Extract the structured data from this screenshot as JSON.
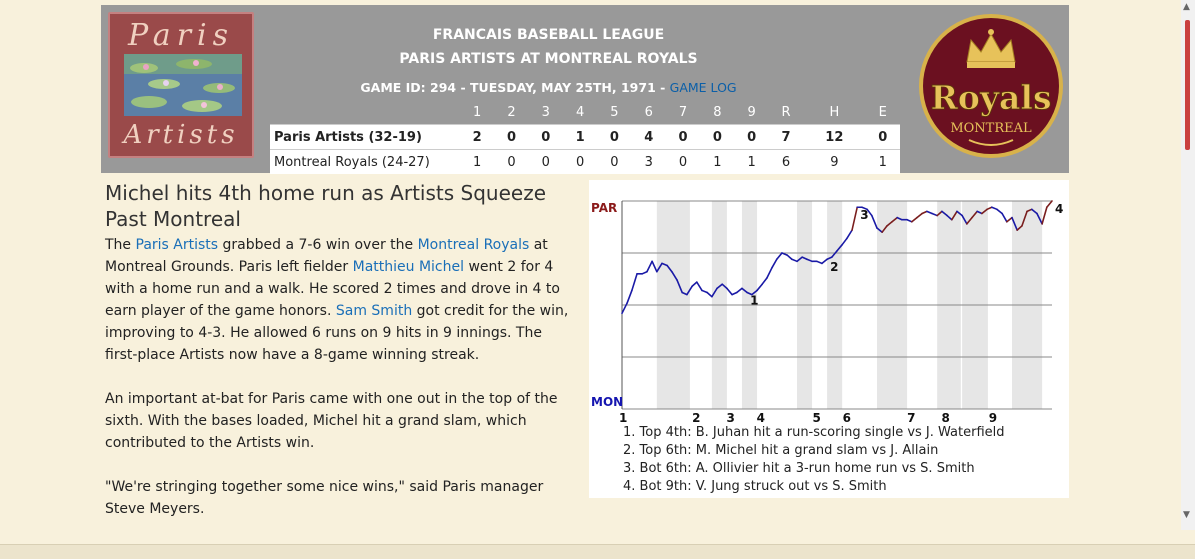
{
  "header": {
    "league": "FRANCAIS BASEBALL LEAGUE",
    "matchup": "PARIS ARTISTS AT MONTREAL ROYALS",
    "game_info": "GAME ID: 294 - TUESDAY, MAY 25TH, 1971 - ",
    "game_log_link": "GAME LOG"
  },
  "logos": {
    "left": {
      "word1": "Paris",
      "word2": "Artists"
    },
    "right": {
      "word1": "Royals",
      "word2": "MONTREAL"
    }
  },
  "linescore": {
    "columns": [
      "1",
      "2",
      "3",
      "4",
      "5",
      "6",
      "7",
      "8",
      "9",
      "R",
      "H",
      "E"
    ],
    "rows": [
      {
        "team": "Paris Artists (32-19)",
        "values": [
          "2",
          "0",
          "0",
          "1",
          "0",
          "4",
          "0",
          "0",
          "0",
          "7",
          "12",
          "0"
        ]
      },
      {
        "team": "Montreal Royals (24-27)",
        "values": [
          "1",
          "0",
          "0",
          "0",
          "0",
          "3",
          "0",
          "1",
          "1",
          "6",
          "9",
          "1"
        ]
      }
    ]
  },
  "story": {
    "headline": "Michel hits 4th home run as Artists Squeeze Past Montreal",
    "p1": {
      "s1": "The ",
      "link1": "Paris Artists",
      "s2": " grabbed a 7-6 win over the ",
      "link2": "Montreal Royals",
      "s3": " at Montreal Grounds. Paris left fielder ",
      "link3": "Matthieu Michel",
      "s4": " went 2 for 4 with a home run and a walk. He scored 2 times and drove in 4 to earn player of the game honors. ",
      "link4": "Sam Smith",
      "s5": " got credit for the win, improving to 4-3. He allowed 6 runs on 9 hits in 9 innings. The first-place Artists now have a 8-game winning streak."
    },
    "p2": "An important at-bat for Paris came with one out in the top of the sixth. With the bases loaded, Michel hit a grand slam, which contributed to the Artists win.",
    "p3": "\"We're stringing together some nice wins,\" said Paris manager Steve Meyers."
  },
  "chart_data": {
    "type": "line",
    "top_label": "PAR",
    "bottom_label": "MON",
    "colors": {
      "par": "#7a1e1e",
      "mon": "#1a1aa6",
      "top_label": "#8b1a1a",
      "bottom_label": "#1515b0"
    },
    "y_range": [
      0,
      100
    ],
    "x_range": [
      0,
      100
    ],
    "inning_labels": [
      {
        "label": "1",
        "x": 0
      },
      {
        "label": "2",
        "x": 17
      },
      {
        "label": "3",
        "x": 25
      },
      {
        "label": "4",
        "x": 32
      },
      {
        "label": "5",
        "x": 45
      },
      {
        "label": "6",
        "x": 52
      },
      {
        "label": "7",
        "x": 67
      },
      {
        "label": "8",
        "x": 75
      },
      {
        "label": "9",
        "x": 86
      }
    ],
    "shaded_bands": [
      [
        8.1,
        15.8
      ],
      [
        20.9,
        24.4
      ],
      [
        27.9,
        31.4
      ],
      [
        40.7,
        44.2
      ],
      [
        47.7,
        51.2
      ],
      [
        59.3,
        66.3
      ],
      [
        73.3,
        78.8
      ],
      [
        79.1,
        85.1
      ],
      [
        90.7,
        97.7
      ]
    ],
    "series": [
      {
        "x": [
          0,
          1.2,
          2.3,
          3.5,
          4.7,
          5.8,
          7,
          8.1,
          9.3,
          10.5,
          11.6,
          12.8,
          14,
          15.1,
          16.3,
          17.4,
          18.6,
          19.8,
          20.9,
          22.1,
          23.3,
          24.4,
          25.6,
          26.7,
          27.9,
          29.1,
          30.2,
          31.4,
          32.6,
          33.7,
          34.9,
          36,
          37.2,
          38.4,
          39.5,
          40.7,
          41.9,
          43,
          44.2,
          45.3,
          46.5,
          47.7,
          48.8,
          50,
          51.2,
          52.3,
          53.5,
          54.7,
          55.8,
          57,
          58.1,
          59.3,
          60.5,
          61.6,
          62.8,
          64,
          65.1,
          66.3,
          67.4,
          68.6,
          69.8,
          70.9,
          72.1,
          73.3,
          74.4,
          75.6,
          76.7,
          77.9,
          79.1,
          80.2,
          81.4,
          82.6,
          83.7,
          84.9,
          86,
          87.2,
          88.4,
          89.5,
          90.7,
          91.9,
          93,
          94.2,
          95.3,
          96.5,
          97.7,
          98.8,
          100
        ],
        "y": [
          46,
          51,
          57,
          65,
          65,
          66,
          71,
          66,
          70,
          69,
          66,
          62,
          56,
          55,
          59,
          61,
          57,
          56,
          54,
          58,
          60,
          58,
          55,
          56,
          58,
          56,
          55,
          57,
          60,
          63,
          68,
          72,
          75,
          74,
          72,
          71,
          73,
          72,
          71,
          71,
          70,
          72,
          73,
          76,
          79,
          82,
          86,
          97,
          97,
          96,
          93,
          87,
          85,
          88,
          90,
          92,
          91,
          91,
          90,
          92,
          94,
          95,
          94,
          93,
          95,
          93,
          91,
          95,
          93,
          89,
          92,
          95,
          94,
          96,
          97,
          96,
          94,
          90,
          92,
          86,
          88,
          95,
          96,
          94,
          89,
          97,
          100
        ],
        "markers": [
          {
            "label": "1",
            "index": 25
          },
          {
            "label": "2",
            "index": 41
          },
          {
            "label": "3",
            "index": 47
          },
          {
            "label": "4",
            "index": 86
          }
        ]
      }
    ],
    "notes": [
      "1. Top 4th: B. Juhan hit a run-scoring single vs J. Waterfield",
      "2. Top 6th: M. Michel hit a grand slam vs J. Allain",
      "3. Bot 6th: A. Ollivier hit a 3-run home run vs S. Smith",
      "4. Bot 9th: V. Jung struck out vs S. Smith"
    ]
  }
}
